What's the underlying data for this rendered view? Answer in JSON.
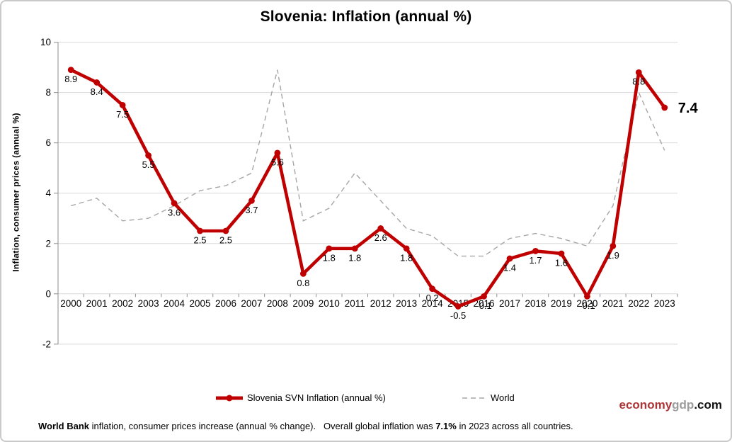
{
  "title": "Slovenia: Inflation (annual %)",
  "y_axis_title": "Inflation, consumer prices (annual %)",
  "legend": {
    "slovenia_label": "Slovenia SVN Inflation (annual %)",
    "world_label": "World"
  },
  "logo": {
    "part_red": "economy",
    "part_gray": "gdp",
    "part_black": ".com"
  },
  "footer": {
    "bold1": "World Bank",
    "text1": " inflation, consumer prices increase (annual % change).   Overall global inflation was ",
    "bold2": "7.1%",
    "text2": " in 2023 across all countries."
  },
  "colors": {
    "slovenia_line": "#C00000",
    "world_line": "#A6A6A6",
    "gridline": "#D9D9D9",
    "axis": "#8E8E8E",
    "label_text": "#000000",
    "logo_red": "#AE3537",
    "logo_gray": "#9C9C9C",
    "logo_black": "#111111"
  },
  "chart_data": {
    "type": "line",
    "title": "Slovenia: Inflation (annual %)",
    "xlabel": "",
    "ylabel": "Inflation, consumer prices (annual %)",
    "ylim": [
      -2,
      10
    ],
    "yticks": [
      10,
      8,
      6,
      4,
      2,
      0,
      -2
    ],
    "grid": true,
    "legend_position": "bottom",
    "x": [
      2000,
      2001,
      2002,
      2003,
      2004,
      2005,
      2006,
      2007,
      2008,
      2009,
      2010,
      2011,
      2012,
      2013,
      2014,
      2015,
      2016,
      2017,
      2018,
      2019,
      2020,
      2021,
      2022,
      2023
    ],
    "series": [
      {
        "name": "Slovenia SVN Inflation (annual %)",
        "style": "solid",
        "markers": true,
        "values": [
          8.9,
          8.4,
          7.5,
          5.5,
          3.6,
          2.5,
          2.5,
          3.7,
          5.6,
          0.8,
          1.8,
          1.8,
          2.6,
          1.8,
          0.2,
          -0.5,
          -0.1,
          1.4,
          1.7,
          1.6,
          -0.1,
          1.9,
          8.8,
          7.4
        ],
        "data_labels": [
          "8.9",
          "8.4",
          "7.5",
          "5.5",
          "3.6",
          "2.5",
          "2.5",
          "3.7",
          "5.6",
          "0.8",
          "1.8",
          "1.8",
          "2.6",
          "1.8",
          "0.2",
          "-0.5",
          "-0.1",
          "1.4",
          "1.7",
          "1.6",
          "-0.1",
          "1.9",
          "8.8",
          "7.4"
        ],
        "last_label_emphasized": true
      },
      {
        "name": "World",
        "style": "dashed",
        "markers": false,
        "values": [
          3.5,
          3.8,
          2.9,
          3.0,
          3.5,
          4.1,
          4.3,
          4.8,
          8.9,
          2.9,
          3.4,
          4.8,
          3.7,
          2.6,
          2.3,
          1.5,
          1.5,
          2.2,
          2.4,
          2.2,
          1.9,
          3.5,
          8.0,
          5.7
        ]
      }
    ]
  }
}
